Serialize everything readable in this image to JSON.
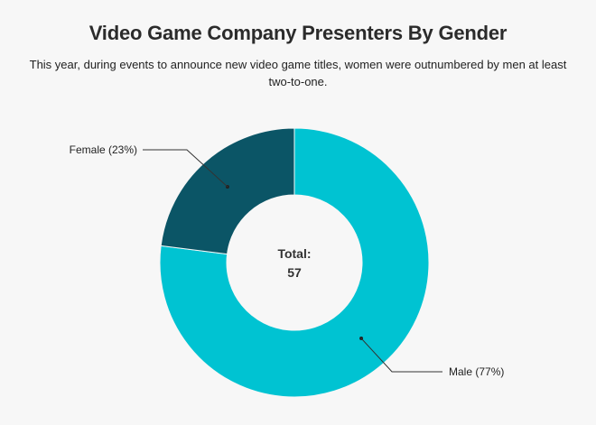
{
  "chart_data": {
    "type": "pie",
    "title": "Video Game Company Presenters By Gender",
    "subtitle": "This year, during events to announce new video game titles, women were outnumbered by men at least two-to-one.",
    "slices": [
      {
        "label": "Female (23%)",
        "name": "Female",
        "value": 23,
        "color": "#0b5566"
      },
      {
        "label": "Male (77%)",
        "name": "Male",
        "value": 77,
        "color": "#00c3d2"
      }
    ],
    "center_label": "Total:",
    "center_value": "57"
  }
}
